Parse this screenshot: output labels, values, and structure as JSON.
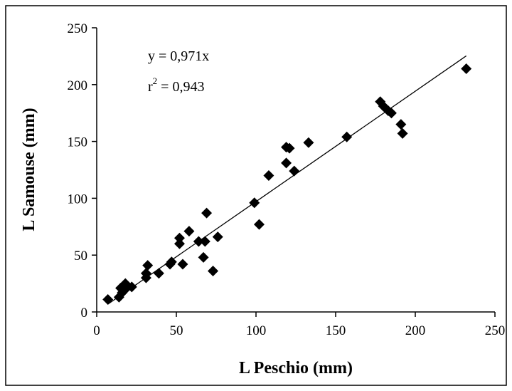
{
  "chart_data": {
    "type": "scatter",
    "title": "",
    "xlabel": "L Peschio (mm)",
    "ylabel": "L Samouse (mm)",
    "xlim": [
      0,
      250
    ],
    "ylim": [
      0,
      250
    ],
    "xticks": [
      0,
      50,
      100,
      150,
      200,
      250
    ],
    "yticks": [
      0,
      50,
      100,
      150,
      200,
      250
    ],
    "xtick_labels": [
      "0",
      "50",
      "100",
      "150",
      "200",
      "250"
    ],
    "ytick_labels": [
      "0",
      "50",
      "100",
      "150",
      "200",
      "250"
    ],
    "grid": false,
    "legend": "none",
    "marker": "diamond",
    "marker_color": "#000000",
    "series": [
      {
        "x": [
          7,
          14,
          15,
          16,
          18,
          18,
          22,
          31,
          31,
          32,
          39,
          46,
          47,
          52,
          52,
          54,
          58,
          64,
          67,
          68,
          69,
          73,
          76,
          99,
          102,
          108,
          119,
          119,
          121,
          124,
          133,
          157,
          178,
          180,
          183,
          185,
          191,
          192,
          232
        ],
        "y": [
          11,
          13,
          21,
          17,
          20,
          25,
          22,
          30,
          34,
          41,
          34,
          42,
          44,
          60,
          65,
          42,
          71,
          62,
          48,
          62,
          87,
          36,
          66,
          96,
          77,
          120,
          131,
          145,
          144,
          124,
          149,
          154,
          185,
          181,
          177,
          175,
          165,
          157,
          214
        ]
      }
    ],
    "fit_line": {
      "slope": 0.971,
      "x_range": [
        7,
        232
      ],
      "color": "#000000"
    },
    "annotations": {
      "equation": "y = 0,971x",
      "r2_prefix": "r",
      "r2_sup": "2",
      "r2_value": " = 0,943"
    }
  }
}
